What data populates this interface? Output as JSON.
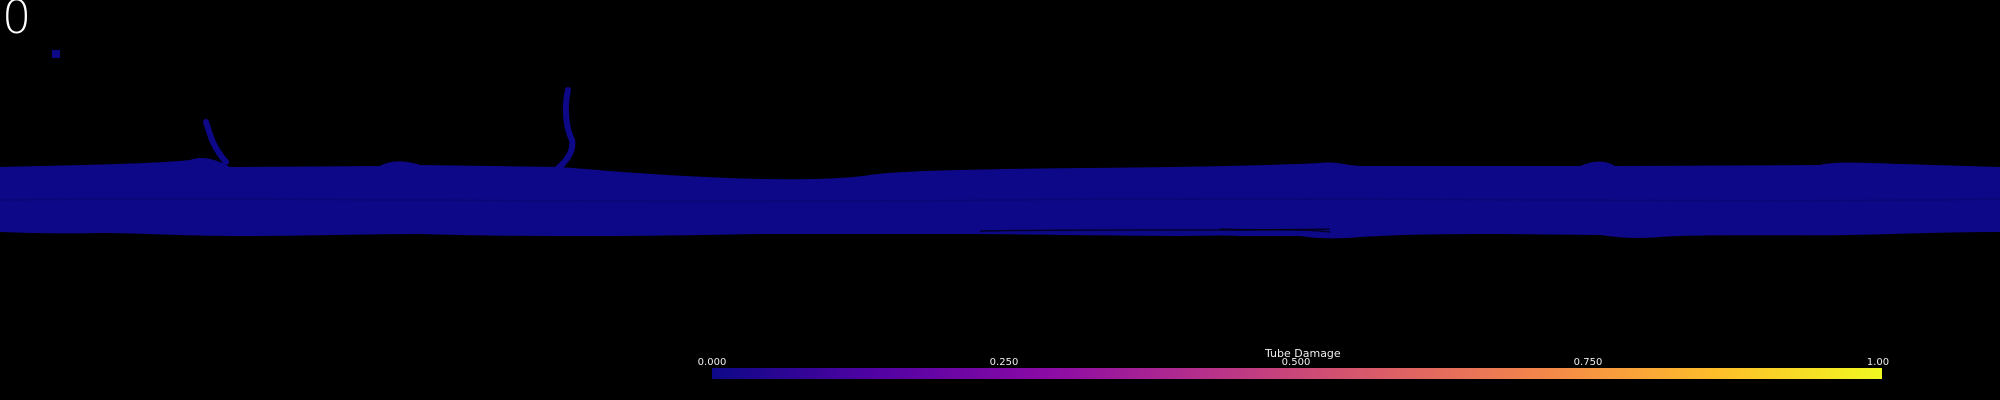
{
  "frame": {
    "counter": "0"
  },
  "scene": {
    "tube_color": "#0d0887"
  },
  "colorbar": {
    "title": "Tube Damage",
    "ticks": [
      "0.000",
      "0.250",
      "0.500",
      "0.750",
      "1.00"
    ],
    "gradient": [
      "#0d0887",
      "#5302a3",
      "#8b0aa5",
      "#b83289",
      "#db5c68",
      "#f48849",
      "#febd2a",
      "#f0f921"
    ]
  }
}
